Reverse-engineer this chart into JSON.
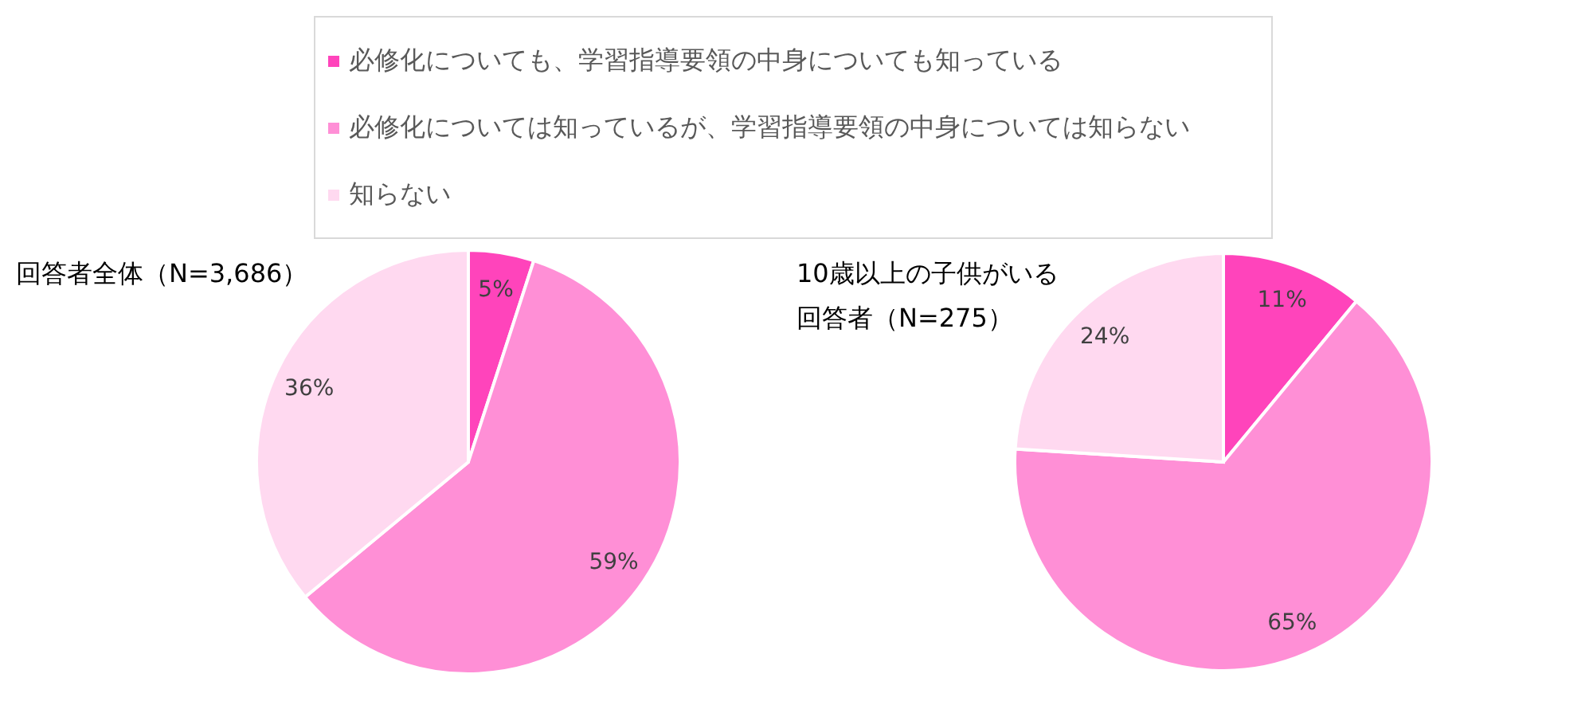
{
  "chart_data": [
    {
      "type": "pie",
      "title": "回答者全体（N=3,686）",
      "categories": [
        "必修化についても、学習指導要領の中身についても知っている",
        "必修化については知っているが、学習指導要領の中身については知らない",
        "知らない"
      ],
      "values": [
        5,
        59,
        36
      ],
      "value_labels": [
        "5%",
        "59%",
        "36%"
      ],
      "colors": [
        "#ff44bb",
        "#ff8fd6",
        "#ffd9f0"
      ],
      "legend": "top"
    },
    {
      "type": "pie",
      "title": "10歳以上の子供がいる回答者（N=275）",
      "values": [
        11,
        65,
        24
      ],
      "value_labels": [
        "11%",
        "65%",
        "24%"
      ],
      "colors": [
        "#ff44bb",
        "#ff8fd6",
        "#ffd9f0"
      ]
    }
  ]
}
